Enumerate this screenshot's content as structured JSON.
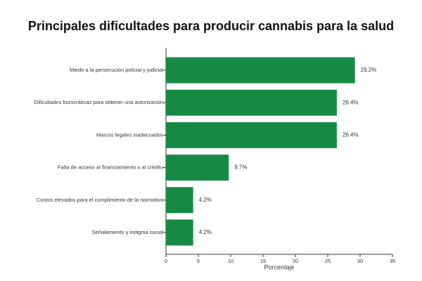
{
  "chart_data": {
    "type": "hbar",
    "title": "Principales dificultades para producir cannabis para la salud",
    "x_label": "Porcentaje",
    "categories": [
      "Miedo a la persecución policial y judicial",
      "Dificultades burocráticas para obtener una autorización",
      "Marcos legales inadecuados",
      "Falta de acceso al financiamiento o al crédito",
      "Costos elevados para el cumplimiento de la normativa",
      "Señalamiento y estigma social"
    ],
    "values": [
      29.2,
      26.4,
      26.4,
      9.7,
      4.2,
      4.2
    ],
    "value_labels": [
      "29.2%",
      "26.4%",
      "26.4%",
      "9.7%",
      "4.2%",
      "4.2%"
    ],
    "color": "#168a44",
    "xlim": [
      0,
      35
    ],
    "xticks": [
      0,
      5,
      10,
      15,
      20,
      25,
      30,
      35
    ],
    "grid": false
  }
}
